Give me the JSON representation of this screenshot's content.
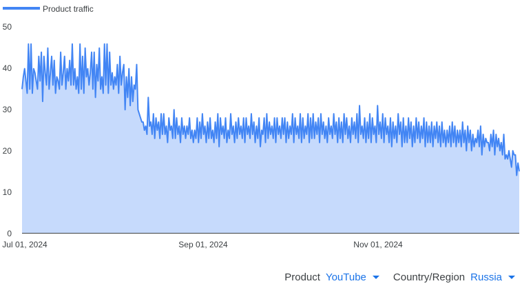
{
  "chart_data": {
    "type": "area",
    "series": [
      {
        "name": "Product traffic",
        "values": [
          35,
          38,
          40,
          37,
          34,
          46,
          35,
          46,
          34,
          40,
          39,
          37,
          35,
          43,
          37,
          44,
          32,
          43,
          39,
          36,
          45,
          35,
          39,
          43,
          36,
          42,
          34,
          38,
          37,
          35,
          44,
          36,
          39,
          43,
          35,
          40,
          37,
          42,
          36,
          46,
          36,
          40,
          35,
          38,
          34,
          46,
          35,
          43,
          34,
          45,
          38,
          40,
          36,
          39,
          44,
          35,
          44,
          33,
          41,
          37,
          45,
          35,
          38,
          34,
          46,
          36,
          46,
          34,
          44,
          36,
          39,
          35,
          38,
          36,
          41,
          34,
          43,
          36,
          39,
          41,
          30,
          38,
          33,
          40,
          31,
          38,
          32,
          36,
          35,
          41,
          30,
          29,
          28,
          27,
          27,
          25,
          26,
          24,
          33,
          26,
          27,
          24,
          29,
          23,
          28,
          25,
          27,
          23,
          29,
          24,
          29,
          24,
          26,
          22,
          28,
          25,
          26,
          23,
          30,
          23,
          28,
          24,
          26,
          22,
          28,
          24,
          26,
          23,
          26,
          24,
          28,
          23,
          25,
          22,
          25,
          23,
          28,
          22,
          27,
          23,
          29,
          24,
          26,
          22,
          27,
          23,
          28,
          23,
          25,
          22,
          27,
          23,
          29,
          21,
          28,
          24,
          26,
          23,
          28,
          22,
          25,
          23,
          29,
          24,
          26,
          22,
          27,
          23,
          28,
          24,
          26,
          23,
          28,
          22,
          28,
          24,
          26,
          23,
          29,
          24,
          27,
          22,
          26,
          23,
          28,
          21,
          25,
          24,
          28,
          22,
          29,
          23,
          27,
          24,
          26,
          23,
          28,
          22,
          28,
          24,
          26,
          23,
          28,
          24,
          28,
          22,
          27,
          23,
          26,
          24,
          29,
          22,
          28,
          24,
          26,
          23,
          29,
          22,
          28,
          23,
          26,
          24,
          29,
          22,
          28,
          23,
          29,
          23,
          27,
          24,
          28,
          22,
          29,
          24,
          27,
          23,
          26,
          22,
          28,
          24,
          26,
          23,
          29,
          24,
          27,
          22,
          28,
          23,
          27,
          22,
          29,
          24,
          28,
          23,
          26,
          22,
          28,
          24,
          27,
          23,
          29,
          22,
          31,
          24,
          26,
          23,
          28,
          22,
          27,
          23,
          29,
          22,
          28,
          24,
          26,
          22,
          31,
          24,
          27,
          23,
          29,
          22,
          28,
          24,
          26,
          22,
          28,
          21,
          27,
          23,
          26,
          22,
          29,
          24,
          27,
          21,
          28,
          22,
          26,
          22,
          28,
          23,
          27,
          21,
          26,
          22,
          28,
          23,
          27,
          22,
          26,
          23,
          28,
          21,
          27,
          22,
          26,
          22,
          27,
          21,
          26,
          23,
          27,
          22,
          26,
          21,
          27,
          22,
          25,
          21,
          25,
          22,
          26,
          21,
          27,
          22,
          26,
          21,
          25,
          22,
          25,
          21,
          27,
          22,
          25,
          20,
          26,
          22,
          25,
          20,
          24,
          21,
          23,
          22,
          25,
          21,
          26,
          19,
          24,
          21,
          23,
          22,
          22,
          20,
          24,
          21,
          25,
          19,
          24,
          21,
          23,
          20,
          22,
          19,
          24,
          18,
          19,
          18,
          20,
          18,
          16,
          20,
          19,
          19,
          14,
          17,
          15
        ]
      }
    ],
    "x_start": "Jul 01, 2024",
    "x_ticks": [
      "Jul 01, 2024",
      "Sep 01, 2024",
      "Nov 01, 2024"
    ],
    "y_ticks": [
      0,
      10,
      20,
      30,
      40,
      50
    ],
    "ylim": [
      0,
      50
    ],
    "grid": false,
    "legend_position": "top-left",
    "colors": {
      "line": "#4285f4",
      "fill": "#c6dafc"
    }
  },
  "legend": {
    "label": "Product traffic"
  },
  "axes": {
    "y_labels": [
      "0",
      "10",
      "20",
      "30",
      "40",
      "50"
    ],
    "x_labels": [
      "Jul 01, 2024",
      "Sep 01, 2024",
      "Nov 01, 2024"
    ]
  },
  "filters": {
    "product": {
      "label": "Product",
      "value": "YouTube"
    },
    "region": {
      "label": "Country/Region",
      "value": "Russia"
    }
  }
}
